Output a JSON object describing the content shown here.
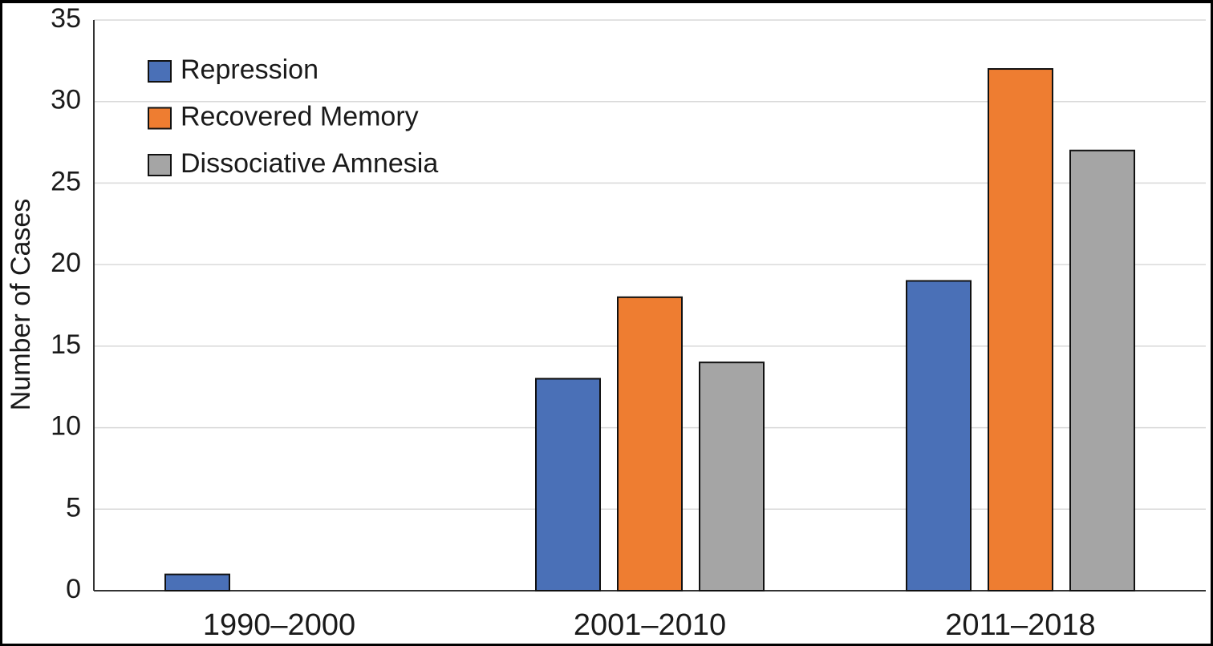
{
  "chart_data": {
    "type": "bar",
    "categories": [
      "1990–2000",
      "2001–2010",
      "2011–2018"
    ],
    "series": [
      {
        "name": "Repression",
        "color": "#4a70b7",
        "values": [
          1,
          13,
          19
        ]
      },
      {
        "name": "Recovered Memory",
        "color": "#ee7d31",
        "values": [
          0,
          18,
          32
        ]
      },
      {
        "name": "Dissociative Amnesia",
        "color": "#a5a5a5",
        "values": [
          0,
          14,
          27
        ]
      }
    ],
    "y_label": "Number of Cases",
    "ylim": [
      0,
      35
    ],
    "yticks": [
      0,
      5,
      10,
      15,
      20,
      25,
      30,
      35
    ],
    "grid": true,
    "legend": "top-left"
  }
}
